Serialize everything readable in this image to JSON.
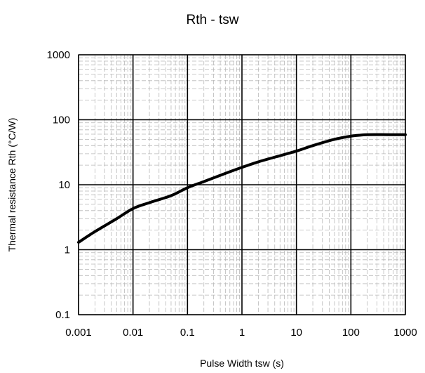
{
  "chart_data": {
    "type": "line",
    "title": "Rth - tsw",
    "xlabel": "Pulse Width tsw (s)",
    "ylabel": "Thermal resistance Rth (°C/W)",
    "xscale": "log",
    "yscale": "log",
    "xlim": [
      0.001,
      1000
    ],
    "ylim": [
      0.1,
      1000
    ],
    "grid": true,
    "x_tick_labels": [
      "0.001",
      "0.01",
      "0.1",
      "1",
      "10",
      "100",
      "1000"
    ],
    "y_tick_labels": [
      "0.1",
      "1",
      "10",
      "100",
      "1000"
    ],
    "series": [
      {
        "color": "#000000",
        "x": [
          0.001,
          0.002,
          0.005,
          0.01,
          0.02,
          0.05,
          0.1,
          0.2,
          0.5,
          1,
          2,
          5,
          10,
          20,
          50,
          100,
          150,
          200,
          500,
          1000
        ],
        "y": [
          1.3,
          1.9,
          3.0,
          4.3,
          5.3,
          6.8,
          9.0,
          11.2,
          15.0,
          18.5,
          22.5,
          28.0,
          33.0,
          40.0,
          50.0,
          56.0,
          58.0,
          59.0,
          59.0,
          59.0
        ]
      }
    ]
  }
}
